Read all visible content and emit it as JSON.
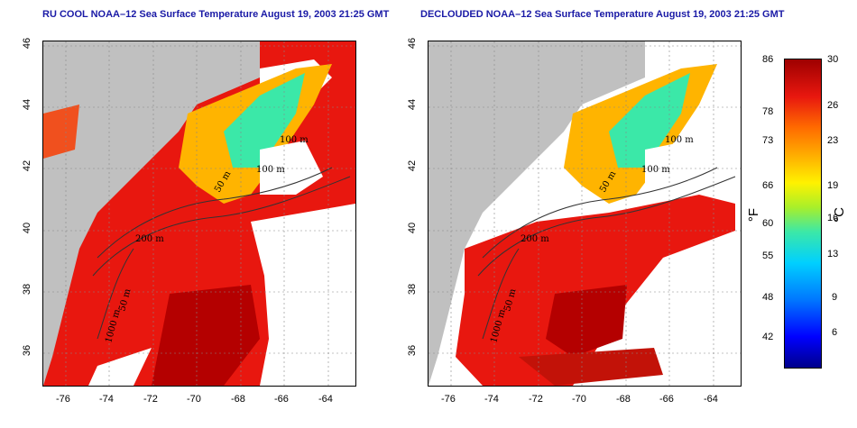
{
  "left_panel": {
    "title": "RU COOL NOAA–12 Sea Surface Temperature August 19, 2003 21:25 GMT"
  },
  "right_panel": {
    "title": "DECLOUDED NOAA–12 Sea Surface Temperature August 19, 2003 21:25 GMT"
  },
  "axes": {
    "lat_ticks": [
      "46",
      "44",
      "42",
      "40",
      "38",
      "36"
    ],
    "lon_ticks": [
      "-76",
      "-74",
      "-72",
      "-70",
      "-68",
      "-66",
      "-64"
    ]
  },
  "contour_labels": [
    "100 m",
    "100 m",
    "50 m",
    "50 m",
    "200 m",
    "50 m",
    "1000 m"
  ],
  "colorbar": {
    "fahrenheit_unit": "°F",
    "celsius_unit": "°C",
    "fahrenheit_ticks": [
      "86",
      "78",
      "73",
      "66",
      "60",
      "55",
      "48",
      "42"
    ],
    "celsius_ticks": [
      "30",
      "26",
      "23",
      "19",
      "16",
      "13",
      "9",
      "6"
    ],
    "colors": {
      "min": "#00008b",
      "low": "#0000ff",
      "cool": "#00d0ff",
      "mid": "#a8ef2a",
      "warm": "#fff200",
      "hot": "#ff6a00",
      "max": "#9e0000"
    }
  },
  "map_colors": {
    "land": "#c0c0c0",
    "cloud": "#ffffff",
    "warm_water": "#e8170f",
    "hot_water": "#b40000",
    "shelf_water": "#ffb400",
    "cool_water": "#3be8a8"
  }
}
